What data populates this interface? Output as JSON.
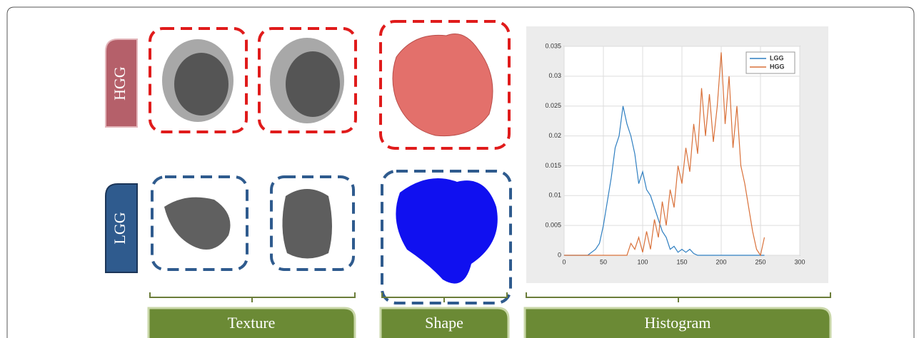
{
  "row_labels": [
    "HGG",
    "LGG"
  ],
  "column_labels": [
    "Texture",
    "Shape",
    "Histogram"
  ],
  "chart_data": {
    "type": "line",
    "x": [
      0,
      5,
      10,
      15,
      20,
      25,
      30,
      35,
      40,
      45,
      50,
      55,
      60,
      65,
      70,
      75,
      80,
      85,
      90,
      95,
      100,
      105,
      110,
      115,
      120,
      125,
      130,
      135,
      140,
      145,
      150,
      155,
      160,
      165,
      170,
      175,
      180,
      185,
      190,
      195,
      200,
      205,
      210,
      215,
      220,
      225,
      230,
      235,
      240,
      245,
      250,
      255
    ],
    "series": [
      {
        "name": "LGG",
        "color": "#2f7fc1",
        "values": [
          0,
          0,
          0,
          0,
          0,
          0,
          0,
          0.0005,
          0.001,
          0.002,
          0.005,
          0.009,
          0.013,
          0.018,
          0.02,
          0.025,
          0.022,
          0.02,
          0.017,
          0.012,
          0.014,
          0.011,
          0.01,
          0.008,
          0.006,
          0.004,
          0.003,
          0.001,
          0.0015,
          0.0005,
          0.001,
          0.0005,
          0.001,
          0.0003,
          0,
          0,
          0,
          0,
          0,
          0,
          0,
          0,
          0,
          0,
          0,
          0,
          0,
          0,
          0,
          0,
          0,
          0
        ]
      },
      {
        "name": "HGG",
        "color": "#d9713a",
        "values": [
          0,
          0,
          0,
          0,
          0,
          0,
          0,
          0,
          0,
          0,
          0,
          0,
          0,
          0,
          0,
          0,
          0,
          0.002,
          0.001,
          0.003,
          0.0005,
          0.004,
          0.001,
          0.006,
          0.003,
          0.009,
          0.005,
          0.011,
          0.008,
          0.015,
          0.012,
          0.018,
          0.014,
          0.022,
          0.017,
          0.028,
          0.02,
          0.027,
          0.019,
          0.025,
          0.034,
          0.022,
          0.03,
          0.018,
          0.025,
          0.015,
          0.012,
          0.008,
          0.004,
          0.001,
          0,
          0.003
        ]
      }
    ],
    "xlim": [
      0,
      300
    ],
    "ylim": [
      0,
      0.035
    ],
    "xticks": [
      0,
      50,
      100,
      150,
      200,
      250,
      300
    ],
    "yticks": [
      0,
      0.005,
      0.01,
      0.015,
      0.02,
      0.025,
      0.03,
      0.035
    ],
    "grid": true,
    "legend": "upper right"
  }
}
